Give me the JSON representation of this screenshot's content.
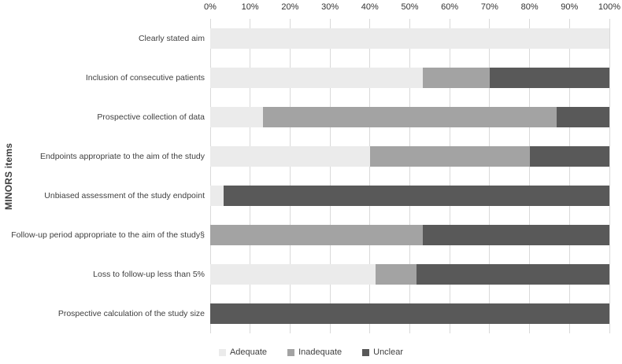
{
  "chart_data": {
    "type": "bar",
    "orientation": "horizontal",
    "stacked": true,
    "title": "",
    "xlabel": "",
    "ylabel": "MINORS items",
    "xlim": [
      0,
      100
    ],
    "x_tick_labels": [
      "0%",
      "10%",
      "20%",
      "30%",
      "40%",
      "50%",
      "60%",
      "70%",
      "80%",
      "90%",
      "100%"
    ],
    "grid": true,
    "legend_position": "bottom",
    "categories": [
      "Clearly stated aim",
      "Inclusion of consecutive patients",
      "Prospective collection of data",
      "Endpoints appropriate to the aim of the study",
      "Unbiased assessment of the study endpoint",
      "Follow-up period appropriate to the aim of the study§",
      "Loss to follow-up less than 5%",
      "Prospective calculation of the study size"
    ],
    "series": [
      {
        "name": "Adequate",
        "color": "#ebebeb",
        "values": [
          100,
          53.3,
          13.3,
          40,
          3.3,
          0,
          41.4,
          0
        ]
      },
      {
        "name": "Inadequate",
        "color": "#a3a3a3",
        "values": [
          0,
          16.7,
          73.4,
          40,
          0,
          53.3,
          10.3,
          0
        ]
      },
      {
        "name": "Unclear",
        "color": "#595959",
        "values": [
          0,
          30,
          13.3,
          20,
          96.7,
          46.7,
          48.3,
          100
        ]
      }
    ]
  },
  "colors": {
    "gridline": "#d9d9d9",
    "text": "#404040",
    "background": "#ffffff"
  }
}
